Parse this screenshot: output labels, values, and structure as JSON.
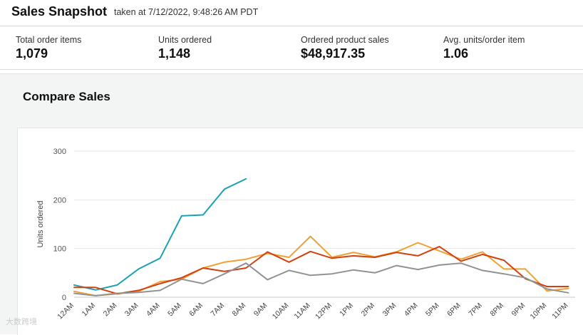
{
  "header": {
    "title": "Sales Snapshot",
    "timestamp": "taken at 7/12/2022, 9:48:26 AM PDT"
  },
  "metrics": [
    {
      "label": "Total order items",
      "value": "1,079"
    },
    {
      "label": "Units ordered",
      "value": "1,148"
    },
    {
      "label": "Ordered product sales",
      "value": "$48,917.35"
    },
    {
      "label": "Avg. units/order item",
      "value": "1.06"
    }
  ],
  "compare": {
    "title": "Compare Sales"
  },
  "watermark": "大数跨境",
  "chart_data": {
    "type": "line",
    "ylabel": "Units ordered",
    "xlabel": "",
    "ylim": [
      0,
      300
    ],
    "yticks": [
      0,
      100,
      200,
      300
    ],
    "grid": true,
    "categories": [
      "12AM",
      "1AM",
      "2AM",
      "3AM",
      "4AM",
      "5AM",
      "6AM",
      "7AM",
      "8AM",
      "9AM",
      "10AM",
      "11AM",
      "12PM",
      "1PM",
      "2PM",
      "3PM",
      "4PM",
      "5PM",
      "6PM",
      "7PM",
      "8PM",
      "9PM",
      "10PM",
      "11PM"
    ],
    "series": [
      {
        "color": "#1ba3b3",
        "values": [
          25,
          15,
          25,
          58,
          80,
          167,
          169,
          222,
          243,
          null,
          null,
          null,
          null,
          null,
          null,
          null,
          null,
          null,
          null,
          null,
          null,
          null,
          null,
          null
        ]
      },
      {
        "color": "#f2a033",
        "values": [
          12,
          3,
          7,
          12,
          32,
          37,
          60,
          72,
          78,
          90,
          82,
          125,
          82,
          92,
          83,
          93,
          112,
          95,
          78,
          93,
          58,
          58,
          13,
          18
        ]
      },
      {
        "color": "#d14210",
        "values": [
          20,
          20,
          7,
          14,
          28,
          40,
          60,
          53,
          60,
          93,
          72,
          94,
          80,
          85,
          82,
          92,
          85,
          104,
          74,
          88,
          76,
          38,
          22,
          22
        ]
      },
      {
        "color": "#8f9394",
        "values": [
          8,
          3,
          8,
          10,
          14,
          37,
          28,
          48,
          70,
          36,
          55,
          45,
          48,
          56,
          50,
          65,
          57,
          66,
          70,
          55,
          48,
          40,
          17,
          9
        ]
      }
    ]
  }
}
